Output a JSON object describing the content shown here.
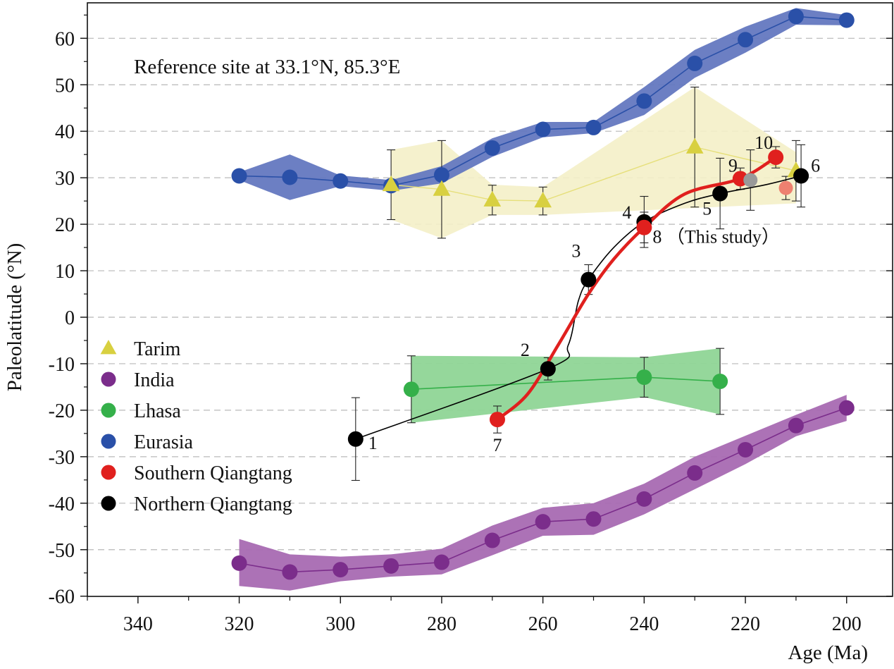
{
  "chart_data": {
    "type": "scatter",
    "xlabel": "Age (Ma)",
    "ylabel": "Paleolatitude (°N)",
    "xlim": [
      350,
      190
    ],
    "ylim": [
      -60,
      67
    ],
    "x_reversed": true,
    "x_ticks": [
      340,
      320,
      300,
      280,
      260,
      240,
      220,
      200
    ],
    "y_ticks": [
      60,
      50,
      40,
      30,
      20,
      10,
      0,
      -10,
      -20,
      -30,
      -40,
      -50,
      -60
    ],
    "x_tick_labels": [
      "340",
      "320",
      "300",
      "280",
      "260",
      "240",
      "220",
      "200"
    ],
    "y_tick_labels": [
      "60",
      "50",
      "40",
      "30",
      "20",
      "10",
      "0",
      "-10",
      "-20",
      "-30",
      "-40",
      "-50",
      "-60"
    ],
    "grid": "horizontal dashed",
    "legend_position": "left-middle",
    "annotation": "Reference site at 33.1°N, 85.3°E",
    "colors": {
      "tarim": "#d8d040",
      "tarim_band": "#f4efc8",
      "india": "#7b2d8b",
      "india_band": "#a86ab2",
      "lhasa": "#35b04a",
      "lhasa_band": "#8fd596",
      "eurasia": "#2a50a8",
      "eurasia_band": "#6478c0",
      "southern": "#e0201e",
      "northern": "#000000"
    },
    "series": [
      {
        "name": "Eurasia",
        "marker": "circle",
        "x": [
          320,
          310,
          300,
          290,
          280,
          270,
          260,
          250,
          240,
          230,
          220,
          210,
          200
        ],
        "y": [
          30.4,
          30.1,
          29.3,
          28.3,
          30.6,
          36.4,
          40.4,
          40.8,
          46.5,
          54.6,
          59.7,
          64.7,
          63.9
        ],
        "band_upper": [
          31.2,
          35.0,
          30.5,
          29.5,
          32.5,
          38.5,
          42.0,
          42.0,
          49.5,
          57.5,
          62.5,
          66.5,
          65.0
        ],
        "band_lower": [
          29.5,
          25.2,
          28.2,
          27.2,
          28.8,
          34.5,
          38.7,
          39.6,
          43.5,
          51.5,
          56.9,
          62.9,
          62.8
        ]
      },
      {
        "name": "Tarim",
        "marker": "triangle",
        "x": [
          290,
          280,
          270,
          260,
          230,
          210
        ],
        "y": [
          28.5,
          27.5,
          25.2,
          25.0,
          36.6,
          31.5
        ],
        "band_upper": [
          36.0,
          38.0,
          28.5,
          28.0,
          49.5,
          35.5
        ],
        "band_lower": [
          21.0,
          17.0,
          22.0,
          22.0,
          23.5,
          24.5
        ],
        "err": [
          7.5,
          10.5,
          3.2,
          3.0,
          12.9,
          6.5
        ]
      },
      {
        "name": "India",
        "marker": "circle",
        "x": [
          320,
          310,
          300,
          290,
          280,
          270,
          260,
          250,
          240,
          230,
          220,
          210,
          200
        ],
        "y": [
          -52.9,
          -54.8,
          -54.3,
          -53.5,
          -52.7,
          -48.0,
          -44.0,
          -43.4,
          -39.1,
          -33.5,
          -28.5,
          -23.3,
          -19.5
        ],
        "band_upper": [
          -47.7,
          -51.0,
          -51.5,
          -51.0,
          -49.8,
          -44.8,
          -41.0,
          -40.0,
          -35.8,
          -30.0,
          -25.5,
          -21.0,
          -16.7
        ],
        "band_lower": [
          -57.8,
          -58.8,
          -56.8,
          -55.8,
          -55.3,
          -51.2,
          -47.0,
          -46.8,
          -42.4,
          -37.0,
          -31.6,
          -25.6,
          -22.3
        ]
      },
      {
        "name": "Lhasa",
        "marker": "circle",
        "x": [
          286,
          240,
          225
        ],
        "y": [
          -15.5,
          -12.9,
          -13.8
        ],
        "band_upper": [
          -8.3,
          -8.6,
          -6.7
        ],
        "band_lower": [
          -22.7,
          -17.2,
          -20.9
        ],
        "err": [
          7.2,
          4.3,
          7.1
        ]
      },
      {
        "name": "Southern Qiangtang",
        "marker": "circle",
        "x": [
          269,
          240,
          221,
          214
        ],
        "y": [
          -22.0,
          19.3,
          29.8,
          34.4
        ],
        "err": [
          2.9,
          3.3,
          2.3,
          2.3
        ],
        "labels": [
          "7",
          "8 （This study）",
          "9",
          "10"
        ]
      },
      {
        "name": "Northern Qiangtang",
        "marker": "circle",
        "x": [
          297,
          259,
          251,
          240,
          225,
          209
        ],
        "y": [
          -26.2,
          -11.1,
          8.1,
          20.5,
          26.6,
          30.4
        ],
        "err": [
          8.9,
          2.4,
          3.2,
          5.5,
          7.6,
          6.7
        ],
        "labels": [
          "1",
          "2",
          "3",
          "4",
          "5",
          "6"
        ]
      }
    ],
    "extra_points": [
      {
        "x": 219,
        "y": 29.5,
        "err": 6.5,
        "color": "#999999"
      },
      {
        "x": 212,
        "y": 27.8,
        "err": 2.5,
        "color": "#ee8070"
      }
    ],
    "northern_curve": [
      [
        297,
        -26.2
      ],
      [
        259,
        -11.1
      ],
      [
        255,
        -6.0
      ],
      [
        253,
        3.5
      ],
      [
        251,
        8.1
      ],
      [
        246,
        15.0
      ],
      [
        240,
        20.5
      ],
      [
        232,
        24.5
      ],
      [
        225,
        26.6
      ],
      [
        216,
        28.5
      ],
      [
        209,
        30.4
      ]
    ],
    "southern_curve": [
      [
        269,
        -22.0
      ],
      [
        263,
        -16.5
      ],
      [
        257,
        -6.0
      ],
      [
        251,
        5.0
      ],
      [
        246,
        12.5
      ],
      [
        240,
        19.3
      ],
      [
        232,
        26.5
      ],
      [
        221,
        29.8
      ],
      [
        214,
        34.4
      ]
    ]
  }
}
